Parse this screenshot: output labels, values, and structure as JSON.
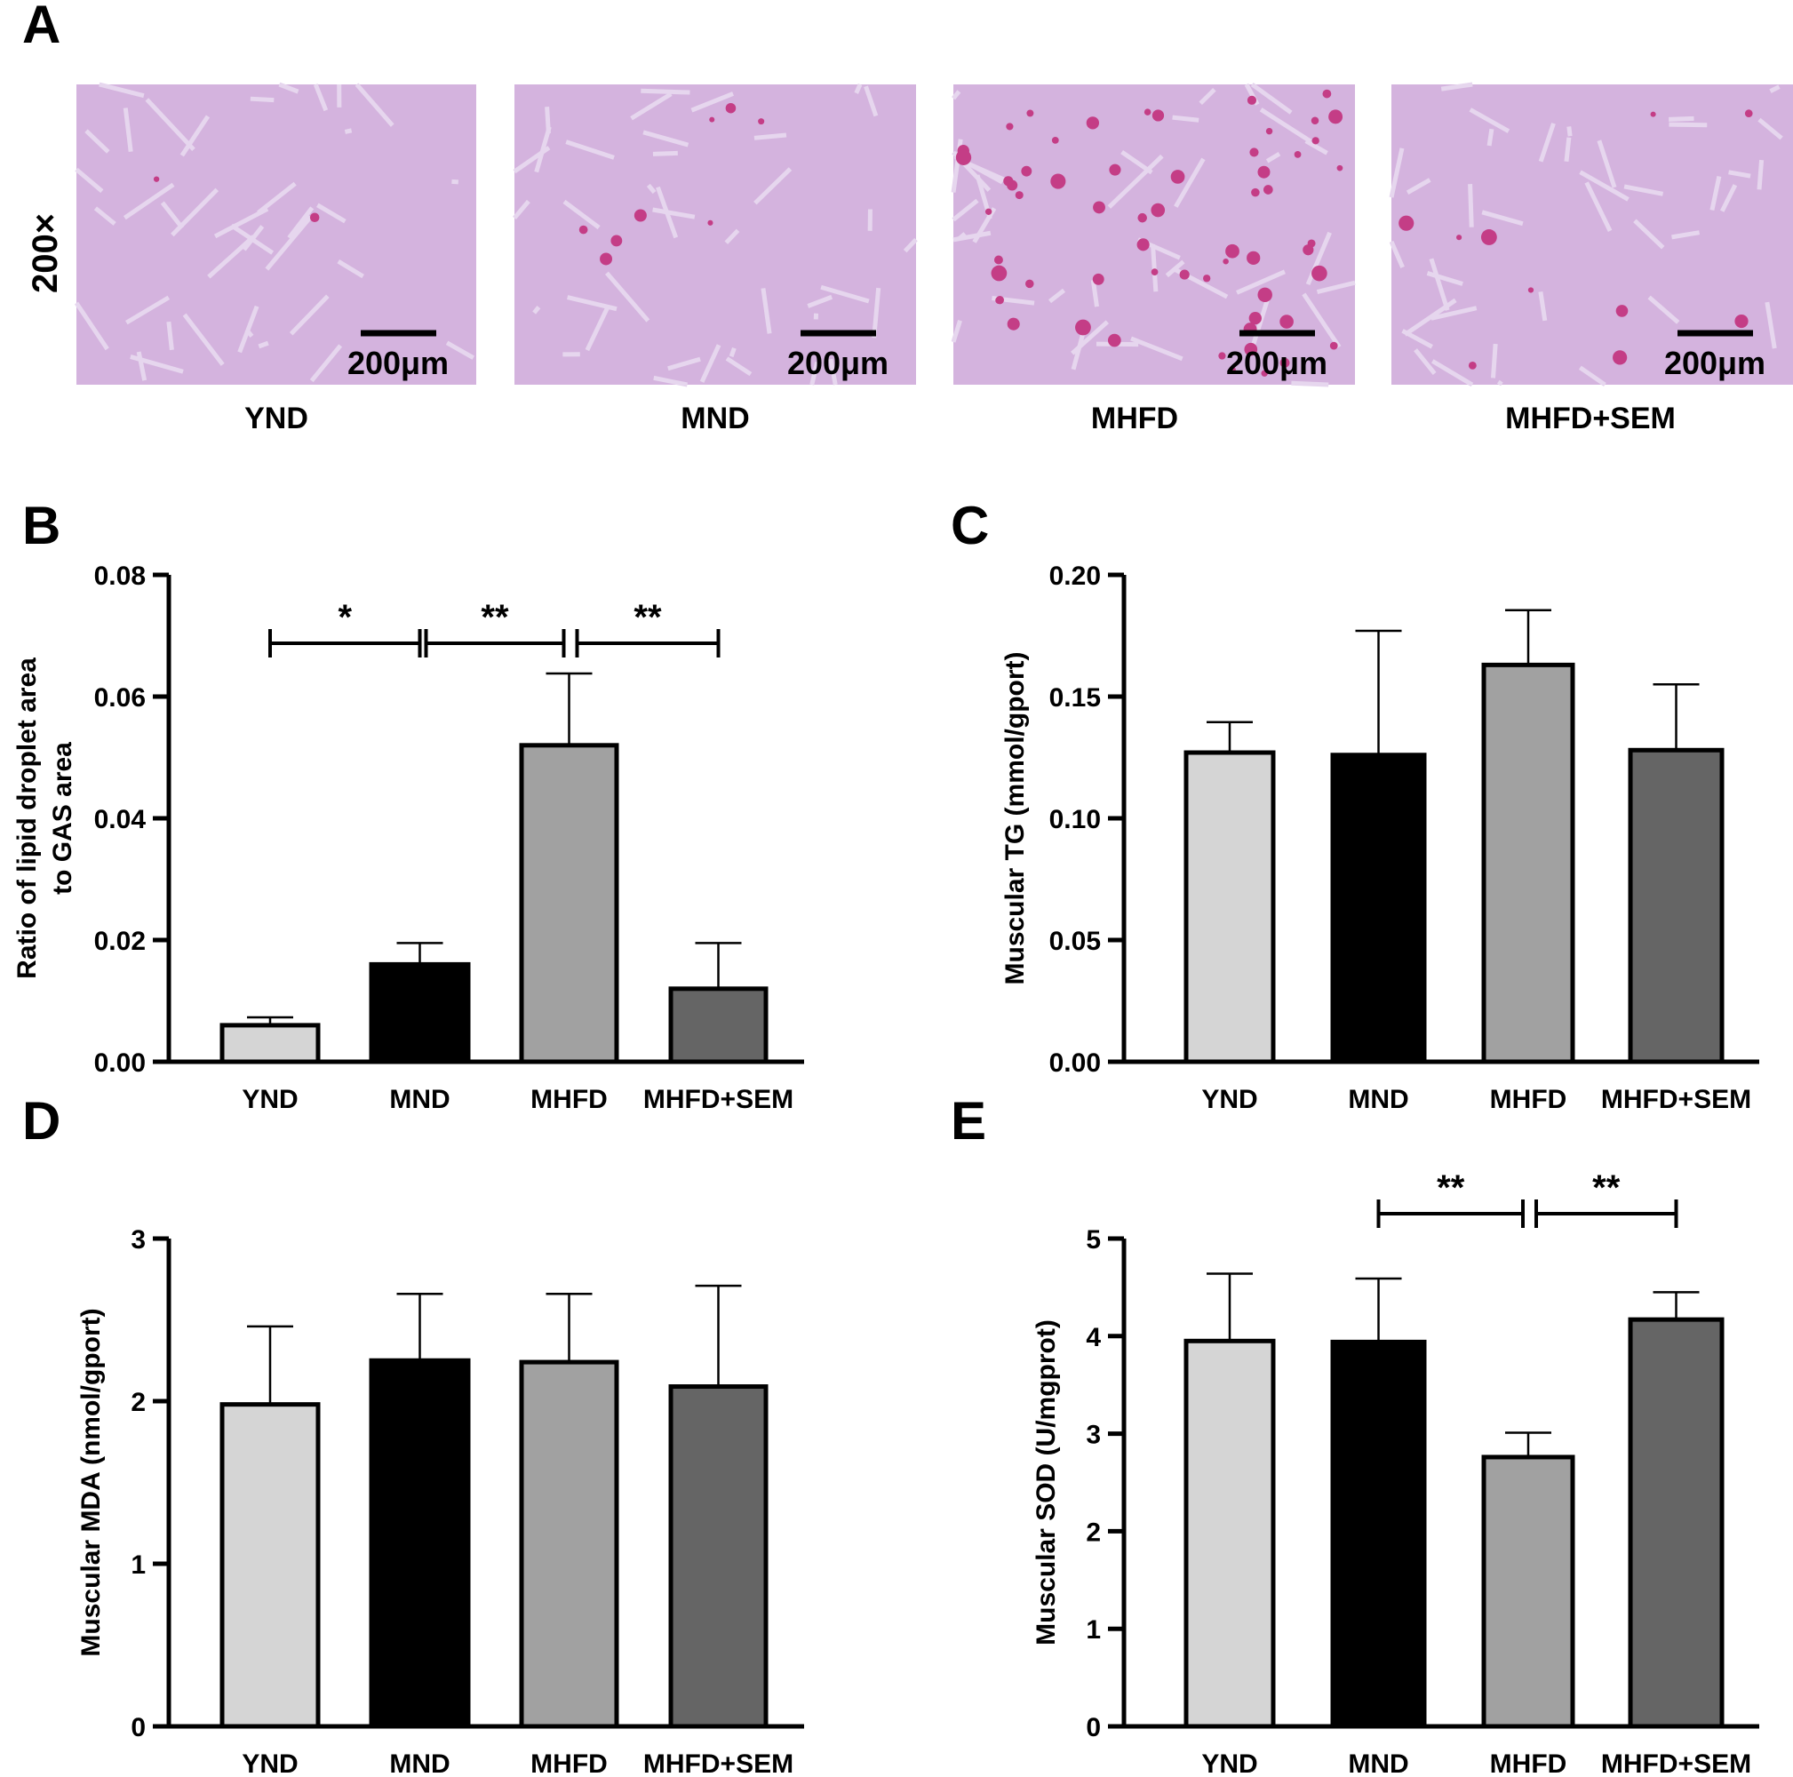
{
  "figure": {
    "panel_letters": [
      "A",
      "B",
      "C",
      "D",
      "E"
    ],
    "panel_a": {
      "magnification": "200×",
      "scale_bar_label": "200μm",
      "groups": [
        "YND",
        "MND",
        "MHFD",
        "MHFD+SEM"
      ]
    },
    "colors": {
      "YND": "#d5d5d5",
      "MND": "#000000",
      "MHFD": "#a1a1a1",
      "MHFD+SEM": "#656565",
      "tissue": "#d4b3de",
      "tissue_edge": "#e6d6ee",
      "lipid_droplet": "#c43d86"
    }
  },
  "chart_data": [
    {
      "panel": "B",
      "type": "bar",
      "categories": [
        "YND",
        "MND",
        "MHFD",
        "MHFD+SEM"
      ],
      "values": [
        0.006,
        0.016,
        0.052,
        0.012
      ],
      "error": [
        0.0013,
        0.0035,
        0.0118,
        0.0075
      ],
      "ylabel_lines": [
        "Ratio of lipid droplet area",
        "to GAS area"
      ],
      "ylim": [
        0,
        0.08
      ],
      "yticks": [
        0,
        0.02,
        0.04,
        0.06,
        0.08
      ],
      "ytick_labels": [
        "0.00",
        "0.02",
        "0.04",
        "0.06",
        "0.08"
      ],
      "significance": [
        {
          "from": 0,
          "to": 1,
          "label": "*"
        },
        {
          "from": 1,
          "to": 2,
          "label": "**"
        },
        {
          "from": 2,
          "to": 3,
          "label": "**"
        }
      ]
    },
    {
      "panel": "C",
      "type": "bar",
      "categories": [
        "YND",
        "MND",
        "MHFD",
        "MHFD+SEM"
      ],
      "values": [
        0.127,
        0.126,
        0.163,
        0.128
      ],
      "error": [
        0.0125,
        0.051,
        0.0225,
        0.027
      ],
      "ylabel_lines": [
        "Muscular TG (mmol/gport)"
      ],
      "ylim": [
        0,
        0.2
      ],
      "yticks": [
        0,
        0.05,
        0.1,
        0.15,
        0.2
      ],
      "ytick_labels": [
        "0.00",
        "0.05",
        "0.10",
        "0.15",
        "0.20"
      ],
      "significance": []
    },
    {
      "panel": "D",
      "type": "bar",
      "categories": [
        "YND",
        "MND",
        "MHFD",
        "MHFD+SEM"
      ],
      "values": [
        1.98,
        2.25,
        2.24,
        2.09
      ],
      "error": [
        0.48,
        0.41,
        0.42,
        0.62
      ],
      "ylabel_lines": [
        "Muscular MDA (nmol/gport)"
      ],
      "ylim": [
        0,
        3
      ],
      "yticks": [
        0,
        1,
        2,
        3
      ],
      "ytick_labels": [
        "0",
        "1",
        "2",
        "3"
      ],
      "significance": []
    },
    {
      "panel": "E",
      "type": "bar",
      "categories": [
        "YND",
        "MND",
        "MHFD",
        "MHFD+SEM"
      ],
      "values": [
        3.95,
        3.94,
        2.76,
        4.17
      ],
      "error": [
        0.69,
        0.65,
        0.25,
        0.28
      ],
      "ylabel_lines": [
        "Muscular SOD (U/mgprot)"
      ],
      "ylim": [
        0,
        5
      ],
      "yticks": [
        0,
        1,
        2,
        3,
        4,
        5
      ],
      "ytick_labels": [
        "0",
        "1",
        "2",
        "3",
        "4",
        "5"
      ],
      "significance": [
        {
          "from": 1,
          "to": 2,
          "label": "**"
        },
        {
          "from": 2,
          "to": 3,
          "label": "**"
        }
      ]
    }
  ]
}
